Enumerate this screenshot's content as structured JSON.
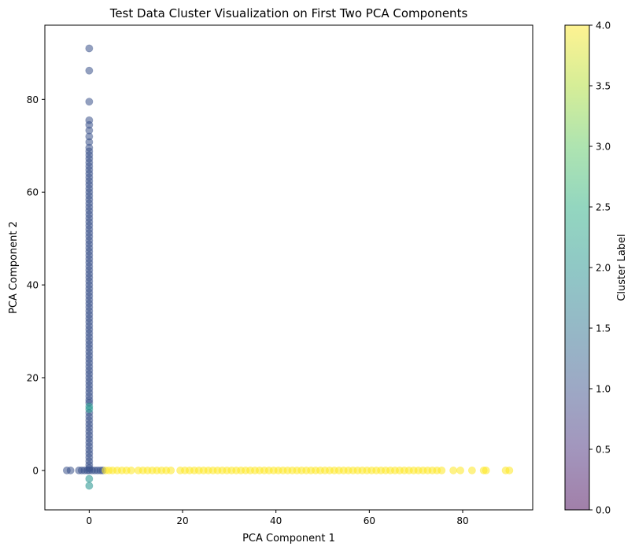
{
  "chart_data": {
    "type": "scatter",
    "title": "Test Data Cluster Visualization on First Two PCA Components",
    "xlabel": "PCA Component 1",
    "ylabel": "PCA Component 2",
    "xlim": [
      -9.5,
      95
    ],
    "ylim": [
      -8.5,
      96
    ],
    "xticks": [
      0,
      20,
      40,
      60,
      80
    ],
    "yticks": [
      0,
      20,
      40,
      60,
      80
    ],
    "colorbar": {
      "label": "Cluster Label",
      "range": [
        0,
        4
      ],
      "ticks": [
        "0.0",
        "0.5",
        "1.0",
        "1.5",
        "2.0",
        "2.5",
        "3.0",
        "3.5",
        "4.0"
      ],
      "colormap": "viridis",
      "alpha": 0.5
    },
    "grid": false,
    "series": [
      {
        "cluster": 1,
        "color": "#3b528b",
        "points": [
          [
            0,
            91.0
          ],
          [
            0,
            86.2
          ],
          [
            0,
            79.5
          ],
          [
            0,
            75.5
          ],
          [
            0,
            74.5
          ],
          [
            0,
            73.3
          ],
          [
            0,
            72.0
          ],
          [
            0,
            70.8
          ],
          [
            0,
            69.6
          ],
          [
            0,
            68.8
          ],
          [
            0,
            68.0
          ],
          [
            0,
            67.2
          ],
          [
            0,
            66.4
          ],
          [
            0,
            65.6
          ],
          [
            0,
            64.8
          ],
          [
            0,
            64.0
          ],
          [
            0,
            63.2
          ],
          [
            0,
            62.4
          ],
          [
            0,
            61.6
          ],
          [
            0,
            60.8
          ],
          [
            0,
            60.0
          ],
          [
            0,
            59.2
          ],
          [
            0,
            58.4
          ],
          [
            0,
            57.6
          ],
          [
            0,
            56.8
          ],
          [
            0,
            56.0
          ],
          [
            0,
            55.2
          ],
          [
            0,
            54.4
          ],
          [
            0,
            53.6
          ],
          [
            0,
            52.8
          ],
          [
            0,
            52.0
          ],
          [
            0,
            51.2
          ],
          [
            0,
            50.4
          ],
          [
            0,
            49.6
          ],
          [
            0,
            48.8
          ],
          [
            0,
            48.0
          ],
          [
            0,
            47.2
          ],
          [
            0,
            46.4
          ],
          [
            0,
            45.6
          ],
          [
            0,
            44.8
          ],
          [
            0,
            44.0
          ],
          [
            0,
            43.2
          ],
          [
            0,
            42.4
          ],
          [
            0,
            41.6
          ],
          [
            0,
            40.8
          ],
          [
            0,
            40.0
          ],
          [
            0,
            39.2
          ],
          [
            0,
            38.4
          ],
          [
            0,
            37.6
          ],
          [
            0,
            36.8
          ],
          [
            0,
            36.0
          ],
          [
            0,
            35.2
          ],
          [
            0,
            34.4
          ],
          [
            0,
            33.6
          ],
          [
            0,
            32.8
          ],
          [
            0,
            32.0
          ],
          [
            0,
            31.2
          ],
          [
            0,
            30.4
          ],
          [
            0,
            29.6
          ],
          [
            0,
            28.8
          ],
          [
            0,
            28.0
          ],
          [
            0,
            27.2
          ],
          [
            0,
            26.4
          ],
          [
            0,
            25.6
          ],
          [
            0,
            24.8
          ],
          [
            0,
            24.0
          ],
          [
            0,
            23.2
          ],
          [
            0,
            22.4
          ],
          [
            0,
            21.6
          ],
          [
            0,
            20.8
          ],
          [
            0,
            20.0
          ],
          [
            0,
            19.2
          ],
          [
            0,
            18.4
          ],
          [
            0,
            17.6
          ],
          [
            0,
            16.8
          ],
          [
            0,
            16.0
          ],
          [
            0,
            15.2
          ],
          [
            0,
            14.6
          ],
          [
            0,
            12.4
          ],
          [
            0,
            11.6
          ],
          [
            0,
            10.8
          ],
          [
            0,
            10.0
          ],
          [
            0,
            9.2
          ],
          [
            0,
            8.4
          ],
          [
            0,
            7.6
          ],
          [
            0,
            6.8
          ],
          [
            0,
            6.0
          ],
          [
            0,
            5.2
          ],
          [
            0,
            4.4
          ],
          [
            0,
            3.6
          ],
          [
            0,
            2.8
          ],
          [
            0,
            2.0
          ],
          [
            0,
            1.2
          ],
          [
            0,
            0.5
          ],
          [
            -4.8,
            0
          ],
          [
            -4.0,
            0
          ],
          [
            -2.2,
            0
          ],
          [
            -1.6,
            0
          ],
          [
            -1.0,
            0
          ],
          [
            -0.4,
            0
          ],
          [
            0,
            0
          ],
          [
            0.6,
            0
          ],
          [
            1.2,
            0
          ],
          [
            1.8,
            0
          ],
          [
            2.4,
            0
          ],
          [
            2.9,
            0
          ]
        ]
      },
      {
        "cluster": 2,
        "color": "#21918c",
        "points": [
          [
            0,
            13.8
          ],
          [
            0,
            13.2
          ],
          [
            0,
            -1.8
          ],
          [
            0,
            -3.3
          ]
        ]
      },
      {
        "cluster": 4,
        "color": "#fde725",
        "points": [
          [
            3.5,
            0
          ],
          [
            4.2,
            0
          ],
          [
            5.0,
            0
          ],
          [
            6.0,
            0
          ],
          [
            7.0,
            0
          ],
          [
            8.0,
            0
          ],
          [
            9.0,
            0
          ],
          [
            10.5,
            0
          ],
          [
            11.5,
            0
          ],
          [
            12.5,
            0
          ],
          [
            13.5,
            0
          ],
          [
            14.5,
            0
          ],
          [
            15.5,
            0
          ],
          [
            16.5,
            0
          ],
          [
            17.5,
            0
          ],
          [
            19.5,
            0
          ],
          [
            20.5,
            0
          ],
          [
            21.5,
            0
          ],
          [
            22.5,
            0
          ],
          [
            23.5,
            0
          ],
          [
            24.5,
            0
          ],
          [
            25.5,
            0
          ],
          [
            26.5,
            0
          ],
          [
            27.5,
            0
          ],
          [
            28.5,
            0
          ],
          [
            29.5,
            0
          ],
          [
            30.5,
            0
          ],
          [
            31.5,
            0
          ],
          [
            32.5,
            0
          ],
          [
            33.5,
            0
          ],
          [
            34.5,
            0
          ],
          [
            35.5,
            0
          ],
          [
            36.5,
            0
          ],
          [
            37.5,
            0
          ],
          [
            38.5,
            0
          ],
          [
            39.5,
            0
          ],
          [
            40.5,
            0
          ],
          [
            41.5,
            0
          ],
          [
            42.5,
            0
          ],
          [
            43.5,
            0
          ],
          [
            44.5,
            0
          ],
          [
            45.5,
            0
          ],
          [
            46.5,
            0
          ],
          [
            47.5,
            0
          ],
          [
            48.5,
            0
          ],
          [
            49.5,
            0
          ],
          [
            50.5,
            0
          ],
          [
            51.5,
            0
          ],
          [
            52.5,
            0
          ],
          [
            53.5,
            0
          ],
          [
            54.5,
            0
          ],
          [
            55.5,
            0
          ],
          [
            56.5,
            0
          ],
          [
            57.5,
            0
          ],
          [
            58.5,
            0
          ],
          [
            59.5,
            0
          ],
          [
            60.5,
            0
          ],
          [
            61.5,
            0
          ],
          [
            62.5,
            0
          ],
          [
            63.5,
            0
          ],
          [
            64.5,
            0
          ],
          [
            65.5,
            0
          ],
          [
            66.5,
            0
          ],
          [
            67.5,
            0
          ],
          [
            68.5,
            0
          ],
          [
            69.5,
            0
          ],
          [
            70.5,
            0
          ],
          [
            71.5,
            0
          ],
          [
            72.5,
            0
          ],
          [
            73.5,
            0
          ],
          [
            74.5,
            0
          ],
          [
            75.5,
            0
          ],
          [
            78.0,
            0
          ],
          [
            79.5,
            0
          ],
          [
            82.0,
            0
          ],
          [
            84.5,
            0
          ],
          [
            85.0,
            0
          ],
          [
            89.2,
            0
          ],
          [
            90.0,
            0
          ]
        ]
      }
    ]
  }
}
